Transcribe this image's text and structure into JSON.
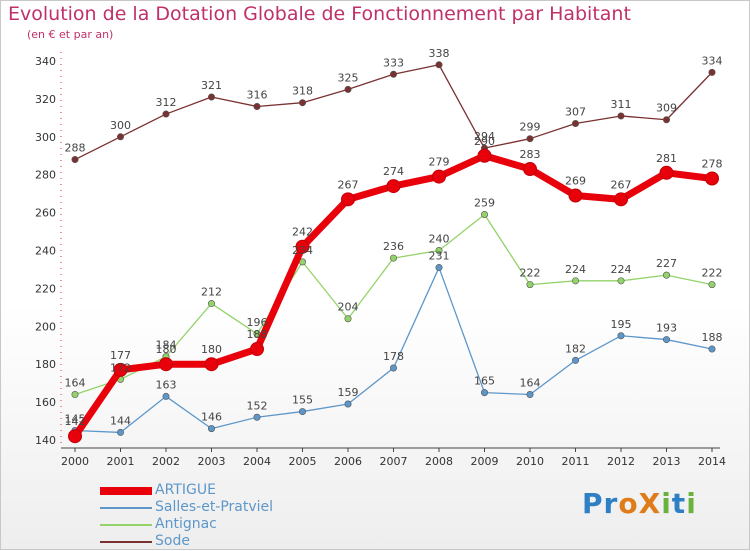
{
  "title": "Evolution de la Dotation Globale de Fonctionnement par Habitant",
  "subtitle": "(en € et par an)",
  "logo": {
    "text": "ProXiti",
    "letters": [
      "P",
      "r",
      "o",
      "X",
      "i",
      "t",
      "i"
    ],
    "colors": [
      "#2e7fc4",
      "#2e7fc4",
      "#e07b1a",
      "#e07b1a",
      "#6ab23e",
      "#2e7fc4",
      "#6ab23e"
    ]
  },
  "chart_data": {
    "type": "line",
    "x": [
      "2000",
      "2001",
      "2002",
      "2003",
      "2004",
      "2005",
      "2006",
      "2007",
      "2008",
      "2009",
      "2010",
      "2011",
      "2012",
      "2013",
      "2014"
    ],
    "ylim": [
      140,
      340
    ],
    "yticks": [
      "140",
      "160",
      "180",
      "200",
      "220",
      "240",
      "260",
      "280",
      "300",
      "320",
      "340"
    ],
    "grid": false,
    "legend_position": "bottom-left",
    "series": [
      {
        "name": "ARTIGUE",
        "color": "#e8000b",
        "emphasis": true,
        "values": [
          142,
          177,
          180,
          180,
          188,
          242,
          267,
          274,
          279,
          290,
          283,
          269,
          267,
          281,
          278
        ],
        "labels": [
          "142",
          "177",
          "180",
          "180",
          "188",
          "242",
          "267",
          "274",
          "279",
          "290",
          "283",
          "269",
          "267",
          "281",
          "278"
        ]
      },
      {
        "name": "Salles-et-Pratviel",
        "color": "#5d97c9",
        "emphasis": false,
        "values": [
          145,
          144,
          163,
          146,
          152,
          155,
          159,
          178,
          231,
          165,
          164,
          182,
          195,
          193,
          188
        ],
        "labels": [
          "145",
          "144",
          "163",
          "146",
          "152",
          "155",
          "159",
          "178",
          "231",
          "165",
          "164",
          "182",
          "195",
          "193",
          "188"
        ]
      },
      {
        "name": "Antignac",
        "color": "#93d36a",
        "emphasis": false,
        "values": [
          164,
          172,
          184,
          212,
          196,
          234,
          204,
          236,
          240,
          259,
          222,
          224,
          224,
          227,
          222
        ],
        "labels": [
          "164",
          "172",
          "184",
          "212",
          "196",
          "234",
          "204",
          "236",
          "240",
          "259",
          "222",
          "224",
          "224",
          "227",
          "222"
        ]
      },
      {
        "name": "Sode",
        "color": "#7a3131",
        "emphasis": false,
        "values": [
          288,
          300,
          312,
          321,
          316,
          318,
          325,
          333,
          338,
          294,
          299,
          307,
          311,
          309,
          334
        ],
        "labels": [
          "288",
          "300",
          "312",
          "321",
          "316",
          "318",
          "325",
          "333",
          "338",
          "294",
          "299",
          "307",
          "311",
          "309",
          "334"
        ]
      }
    ]
  }
}
